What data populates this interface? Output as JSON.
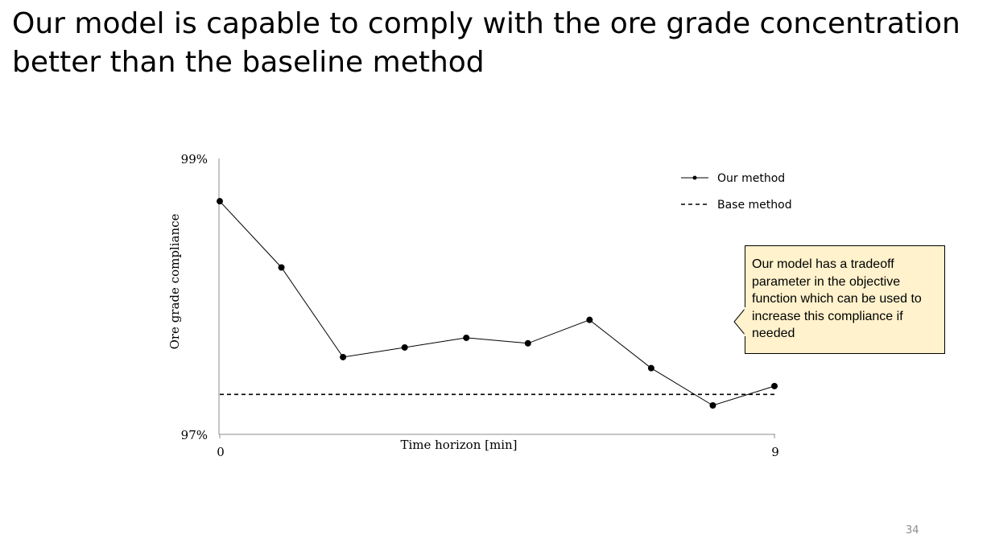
{
  "slide": {
    "title": "Our model is capable to comply with the ore grade concentration better than the baseline method",
    "callout": "Our model has a tradeoff parameter in the objective function which can be used to increase this compliance if needed",
    "page_number": "34"
  },
  "chart_data": {
    "type": "line",
    "title": "",
    "xlabel": "Time horizon [min]",
    "ylabel": "Ore grade compliance",
    "x_tick_labels": [
      "0",
      "9"
    ],
    "y_tick_labels": [
      "97%",
      "99%"
    ],
    "xlim": [
      0,
      9
    ],
    "ylim": [
      97,
      99
    ],
    "legend_position": "top-right",
    "series": [
      {
        "name": "Our method",
        "style": "solid-with-markers",
        "color": "#000000",
        "x": [
          0,
          1,
          2,
          3,
          4,
          5,
          6,
          7,
          8,
          9
        ],
        "y": [
          98.69,
          98.21,
          97.56,
          97.63,
          97.7,
          97.66,
          97.83,
          97.48,
          97.21,
          97.35
        ]
      },
      {
        "name": "Base method",
        "style": "dashed",
        "color": "#000000",
        "x": [
          0,
          9
        ],
        "y": [
          97.29,
          97.29
        ]
      }
    ]
  }
}
